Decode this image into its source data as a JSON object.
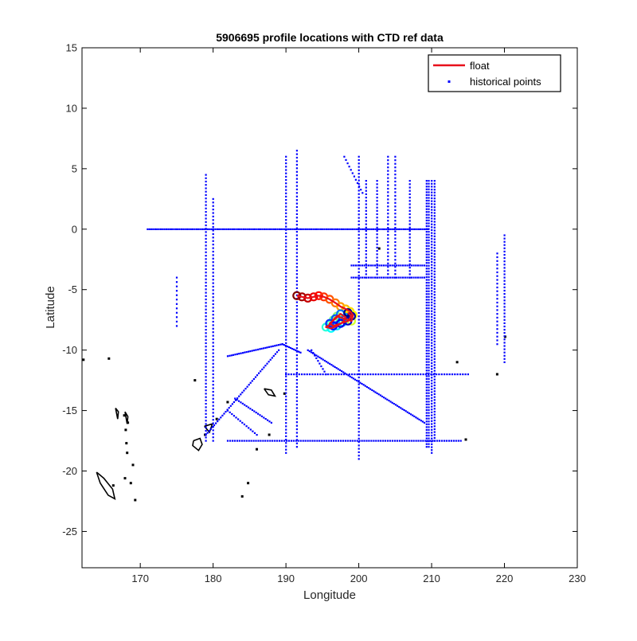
{
  "chart_data": {
    "type": "scatter",
    "title": "5906695 profile locations with CTD ref data",
    "xlabel": "Longitude",
    "ylabel": "Latitude",
    "xlim": [
      162,
      230
    ],
    "ylim": [
      -28,
      15
    ],
    "xticks": [
      170,
      180,
      190,
      200,
      210,
      220,
      230
    ],
    "yticks": [
      15,
      10,
      5,
      0,
      -5,
      -10,
      -15,
      -20,
      -25
    ],
    "xtick_labels": [
      "170",
      "180",
      "190",
      "200",
      "210",
      "220",
      "230"
    ],
    "ytick_labels": [
      "15",
      "10",
      "5",
      "0",
      "-5",
      "-10",
      "-15",
      "-20",
      "-25"
    ],
    "grid": false,
    "legend_position": "top-right",
    "legend": [
      {
        "label": "float",
        "color": "#e8101a",
        "marker": "line"
      },
      {
        "label": "historical points",
        "color": "#0000ff",
        "marker": "dot"
      }
    ],
    "float_track": {
      "name": "float",
      "lon": [
        191.5,
        192.2,
        193.0,
        193.8,
        194.5,
        195.2,
        196.0,
        196.8,
        197.5,
        198.2,
        198.8,
        199.2,
        199.0,
        198.0,
        197.0,
        196.5,
        196.0,
        195.5,
        196.2,
        197.0,
        197.8,
        198.2,
        197.5,
        196.8,
        196.0,
        196.5,
        197.5,
        198.5,
        199.0,
        198.5
      ],
      "lat": [
        -5.5,
        -5.6,
        -5.7,
        -5.6,
        -5.5,
        -5.6,
        -5.8,
        -6.1,
        -6.4,
        -6.6,
        -6.8,
        -7.1,
        -7.6,
        -7.4,
        -7.2,
        -7.5,
        -7.9,
        -8.1,
        -8.2,
        -8.0,
        -7.7,
        -7.3,
        -7.0,
        -7.4,
        -7.8,
        -8.0,
        -7.8,
        -7.6,
        -7.2,
        -6.9
      ]
    },
    "historical_points": {
      "name": "historical points",
      "color": "#0000ff",
      "segments": [
        {
          "lon": [
            171,
            209.5
          ],
          "lat": [
            0,
            0
          ],
          "n": 150
        },
        {
          "lon": [
            179,
            179
          ],
          "lat": [
            4.5,
            -17.5
          ],
          "n": 80
        },
        {
          "lon": [
            180,
            180
          ],
          "lat": [
            2.5,
            -17.5
          ],
          "n": 70
        },
        {
          "lon": [
            190,
            190
          ],
          "lat": [
            6,
            -18.5
          ],
          "n": 90
        },
        {
          "lon": [
            191.5,
            191.5
          ],
          "lat": [
            6.5,
            -18
          ],
          "n": 85
        },
        {
          "lon": [
            200,
            200
          ],
          "lat": [
            6,
            -19
          ],
          "n": 90
        },
        {
          "lon": [
            204,
            204
          ],
          "lat": [
            6,
            -4
          ],
          "n": 35
        },
        {
          "lon": [
            205,
            205
          ],
          "lat": [
            6,
            -4
          ],
          "n": 35
        },
        {
          "lon": [
            209.3,
            209.3
          ],
          "lat": [
            4,
            -18
          ],
          "n": 95
        },
        {
          "lon": [
            209.6,
            209.6
          ],
          "lat": [
            4,
            -18
          ],
          "n": 95
        },
        {
          "lon": [
            210,
            210
          ],
          "lat": [
            4,
            -18.5
          ],
          "n": 95
        },
        {
          "lon": [
            210.4,
            210.4
          ],
          "lat": [
            4,
            -17.5
          ],
          "n": 90
        },
        {
          "lon": [
            201,
            201
          ],
          "lat": [
            4,
            -4
          ],
          "n": 30
        },
        {
          "lon": [
            202.5,
            202.5
          ],
          "lat": [
            4,
            -4
          ],
          "n": 30
        },
        {
          "lon": [
            207,
            207
          ],
          "lat": [
            4,
            -4
          ],
          "n": 30
        },
        {
          "lon": [
            198,
            200.5
          ],
          "lat": [
            6,
            3
          ],
          "n": 12
        },
        {
          "lon": [
            199,
            209
          ],
          "lat": [
            -3,
            -3
          ],
          "n": 35
        },
        {
          "lon": [
            199,
            209
          ],
          "lat": [
            -4,
            -4
          ],
          "n": 35
        },
        {
          "lon": [
            190,
            215
          ],
          "lat": [
            -12,
            -12
          ],
          "n": 70
        },
        {
          "lon": [
            182,
            214
          ],
          "lat": [
            -17.5,
            -17.5
          ],
          "n": 100
        },
        {
          "lon": [
            179,
            189
          ],
          "lat": [
            -17,
            -10
          ],
          "n": 45
        },
        {
          "lon": [
            182,
            189.5
          ],
          "lat": [
            -10.5,
            -9.5
          ],
          "n": 30
        },
        {
          "lon": [
            189.5,
            192
          ],
          "lat": [
            -9.5,
            -10.2
          ],
          "n": 12
        },
        {
          "lon": [
            193,
            209
          ],
          "lat": [
            -10,
            -16
          ],
          "n": 70
        },
        {
          "lon": [
            193.5,
            195.5
          ],
          "lat": [
            -10,
            -12
          ],
          "n": 10
        },
        {
          "lon": [
            220,
            220
          ],
          "lat": [
            -0.5,
            -11
          ],
          "n": 40
        },
        {
          "lon": [
            219,
            219
          ],
          "lat": [
            -2,
            -9.5
          ],
          "n": 25
        },
        {
          "lon": [
            175,
            175
          ],
          "lat": [
            -4,
            -8
          ],
          "n": 12
        },
        {
          "lon": [
            183,
            188
          ],
          "lat": [
            -14,
            -16
          ],
          "n": 20
        },
        {
          "lon": [
            182,
            186
          ],
          "lat": [
            -15,
            -17
          ],
          "n": 15
        }
      ]
    },
    "coastline": {
      "name": "land",
      "color": "#000000",
      "shapes": [
        {
          "lon": [
            164.0,
            165.0,
            166.2,
            166.5,
            165.6,
            164.5,
            164.0
          ],
          "lat": [
            -20.1,
            -20.6,
            -21.5,
            -22.3,
            -22.0,
            -21.0,
            -20.1
          ]
        },
        {
          "lon": [
            177.3,
            178.2,
            178.5,
            178.0,
            177.2,
            177.3
          ],
          "lat": [
            -17.5,
            -17.3,
            -17.8,
            -18.3,
            -17.9,
            -17.5
          ]
        },
        {
          "lon": [
            178.8,
            179.9,
            179.5,
            178.8
          ],
          "lat": [
            -16.3,
            -16.1,
            -16.8,
            -16.3
          ]
        },
        {
          "lon": [
            187.0,
            188.0,
            188.5,
            187.6,
            187.0
          ],
          "lat": [
            -13.2,
            -13.3,
            -13.8,
            -13.7,
            -13.2
          ]
        },
        {
          "lon": [
            166.6,
            167.0,
            166.9,
            166.6
          ],
          "lat": [
            -14.8,
            -15.1,
            -15.7,
            -14.8
          ]
        },
        {
          "lon": [
            167.9,
            168.3,
            168.2,
            167.9
          ],
          "lat": [
            -15.1,
            -15.5,
            -16.1,
            -15.1
          ]
        }
      ],
      "islands": [
        [
          162.2,
          -10.8
        ],
        [
          165.7,
          -10.7
        ],
        [
          167.8,
          -15.4
        ],
        [
          168.3,
          -16.0
        ],
        [
          168.1,
          -17.7
        ],
        [
          168.2,
          -18.5
        ],
        [
          169.0,
          -19.5
        ],
        [
          167.9,
          -20.6
        ],
        [
          168.7,
          -21.0
        ],
        [
          169.3,
          -22.4
        ],
        [
          166.3,
          -21.2
        ],
        [
          168.0,
          -16.6
        ],
        [
          178.9,
          -17.0
        ],
        [
          177.5,
          -12.5
        ],
        [
          184.8,
          -21.0
        ],
        [
          184.0,
          -22.1
        ],
        [
          186.0,
          -18.2
        ],
        [
          187.7,
          -17.0
        ],
        [
          189.8,
          -13.6
        ],
        [
          202.8,
          -1.6
        ],
        [
          214.7,
          -17.4
        ],
        [
          220.1,
          -8.9
        ],
        [
          219.0,
          -12.0
        ],
        [
          213.5,
          -11.0
        ],
        [
          182.0,
          -14.3
        ],
        [
          180.5,
          -15.7
        ]
      ]
    }
  }
}
